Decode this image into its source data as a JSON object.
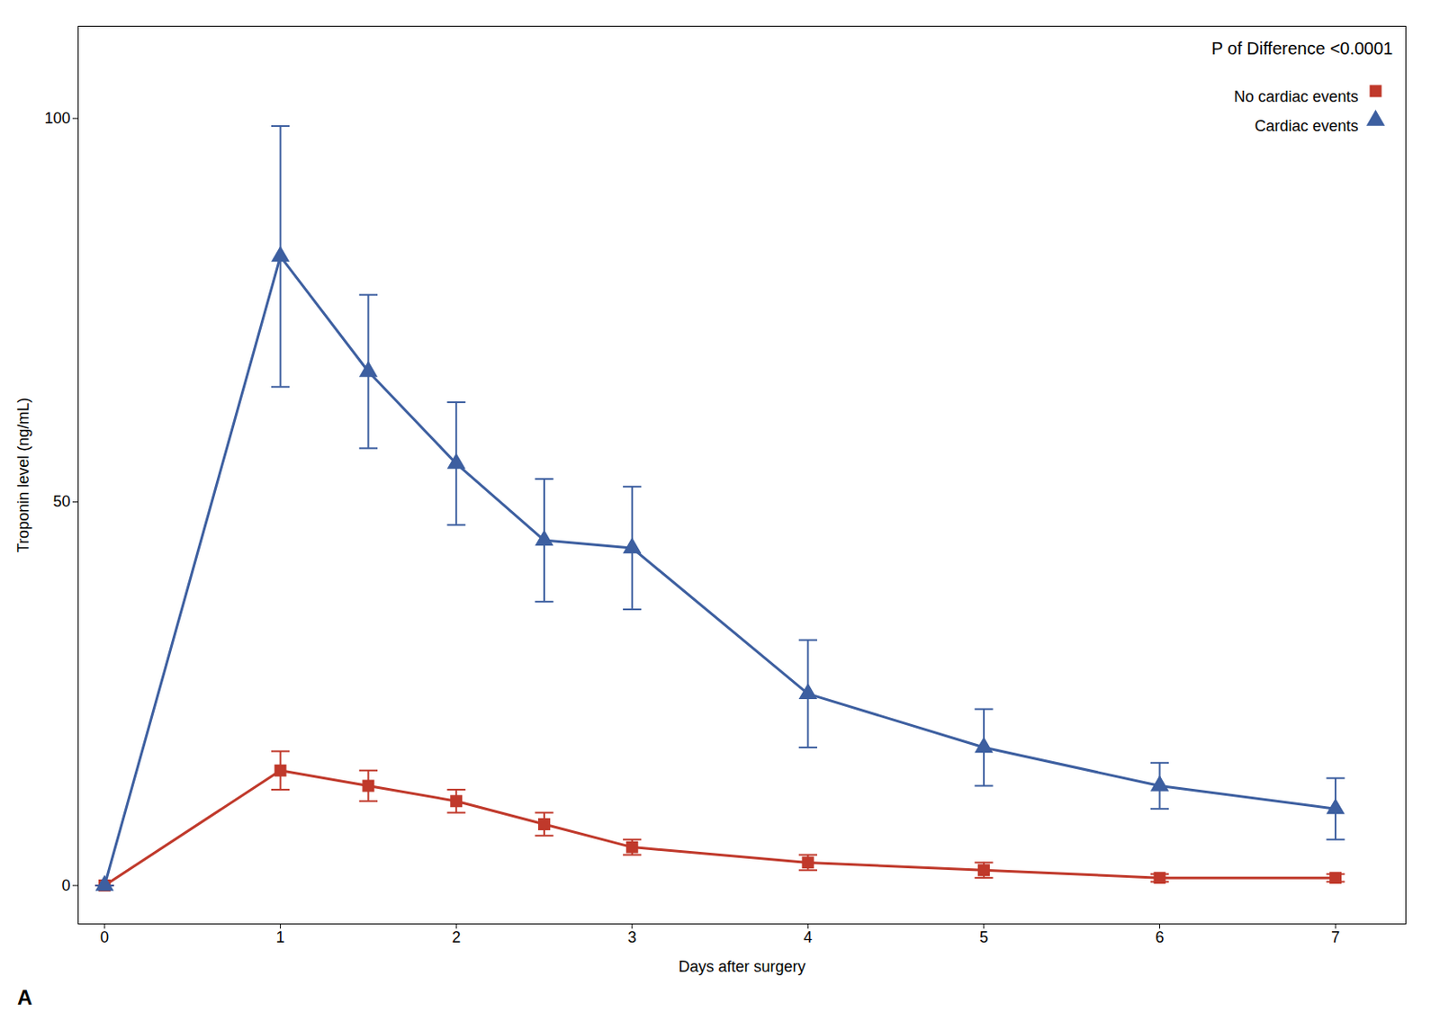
{
  "chart_data": {
    "type": "line",
    "xlabel": "Days after surgery",
    "ylabel": "Troponin level (ng/mL)",
    "annotations": [
      "P of Difference <0.0001",
      "A"
    ],
    "x": [
      0,
      1,
      1.5,
      2,
      2.5,
      3,
      4,
      5,
      6,
      7
    ],
    "series": [
      {
        "name": "No cardiac events",
        "color": "#c0392b",
        "marker": "square",
        "values": [
          0,
          15,
          13,
          11,
          8,
          5,
          3,
          2,
          1,
          1
        ],
        "yerr_low": [
          0,
          2.5,
          2,
          1.5,
          1.5,
          1,
          1,
          1,
          0.5,
          0.5
        ],
        "yerr_high": [
          0,
          2.5,
          2,
          1.5,
          1.5,
          1,
          1,
          1,
          0.5,
          0.5
        ]
      },
      {
        "name": "Cardiac events",
        "color": "#3d5fa0",
        "marker": "triangle",
        "values": [
          0,
          82,
          67,
          55,
          45,
          44,
          25,
          18,
          13,
          10
        ],
        "yerr_low": [
          0,
          17,
          10,
          8,
          8,
          8,
          7,
          5,
          3,
          4
        ],
        "yerr_high": [
          0,
          17,
          10,
          8,
          8,
          8,
          7,
          5,
          3,
          4
        ]
      }
    ],
    "xlim": [
      -0.15,
      7.4
    ],
    "ylim": [
      -5,
      112
    ],
    "xticks": [
      0,
      1,
      2,
      3,
      4,
      5,
      6,
      7
    ],
    "yticks": [
      0,
      50,
      100
    ],
    "grid": false,
    "legend": "upper right"
  }
}
